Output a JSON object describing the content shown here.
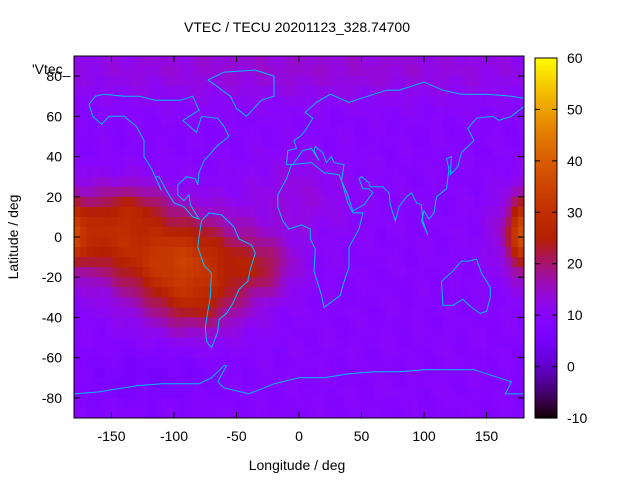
{
  "chart_data": {
    "type": "heatmap",
    "title": "VTEC / TECU 20201123_328.74700",
    "xlabel": "Longitude / deg",
    "ylabel": "Latitude / deg",
    "legend_label": "'Vtec_",
    "xlim": [
      -180,
      180
    ],
    "ylim": [
      -90,
      90
    ],
    "x_ticks": [
      -150,
      -100,
      -50,
      0,
      50,
      100,
      150
    ],
    "y_ticks": [
      80,
      60,
      40,
      20,
      0,
      -20,
      -40,
      -60,
      -80
    ],
    "colorbar": {
      "min": -10,
      "max": 60,
      "ticks": [
        60,
        50,
        40,
        30,
        20,
        10,
        0,
        -10
      ]
    },
    "background_level": 9,
    "features": [
      {
        "name": "main-anomaly-core",
        "lon": -95,
        "lat": -12,
        "peak": 24,
        "lon_sigma": 35,
        "lat_sigma": 16
      },
      {
        "name": "west-pacific-lobe",
        "lon": -160,
        "lat": 2,
        "peak": 15,
        "lon_sigma": 25,
        "lat_sigma": 14
      },
      {
        "name": "north-lobe",
        "lon": -130,
        "lat": 15,
        "peak": 8,
        "lon_sigma": 20,
        "lat_sigma": 8
      },
      {
        "name": "south-tongue",
        "lon": -80,
        "lat": -35,
        "peak": 9,
        "lon_sigma": 25,
        "lat_sigma": 10
      },
      {
        "name": "atlantic-tail",
        "lon": -30,
        "lat": -15,
        "peak": 10,
        "lon_sigma": 18,
        "lat_sigma": 10
      },
      {
        "name": "east-edge-patch",
        "lon": 178,
        "lat": 2,
        "peak": 17,
        "lon_sigma": 8,
        "lat_sigma": 12
      },
      {
        "name": "north-africa-bump",
        "lon": 0,
        "lat": 20,
        "peak": 4,
        "lon_sigma": 30,
        "lat_sigma": 15
      },
      {
        "name": "north-polar-cap",
        "lon": 0,
        "lat": 85,
        "peak": 5,
        "lon_sigma": 180,
        "lat_sigma": 12
      },
      {
        "name": "south-polar-dip",
        "lon": -120,
        "lat": -70,
        "peak": -3,
        "lon_sigma": 40,
        "lat_sigma": 10
      }
    ]
  }
}
